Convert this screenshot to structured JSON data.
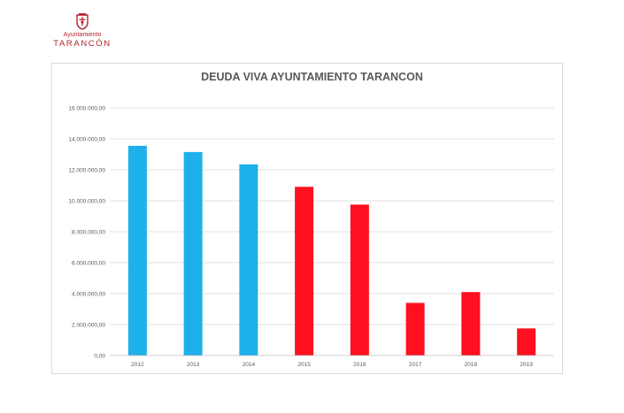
{
  "logo": {
    "line1": "Ayuntamiento",
    "line2": "TARANCÓN",
    "color": "#b5232b",
    "emblem_icon": "coat-of-arms-icon"
  },
  "chart_data": {
    "type": "bar",
    "title": "DEUDA VIVA AYUNTAMIENTO TARANCON",
    "xlabel": "",
    "ylabel": "",
    "categories": [
      "2012",
      "2013",
      "2014",
      "2015",
      "2016",
      "2017",
      "2018",
      "2019"
    ],
    "values": [
      13550000,
      13150000,
      12350000,
      10900000,
      9750000,
      3400000,
      4100000,
      1750000
    ],
    "bar_colors": [
      "#1eb0ea",
      "#1eb0ea",
      "#1eb0ea",
      "#ff0f1f",
      "#ff0f1f",
      "#ff0f1f",
      "#ff0f1f",
      "#ff0f1f"
    ],
    "ylim": [
      0,
      16000000
    ],
    "y_ticks": [
      0,
      2000000,
      4000000,
      6000000,
      8000000,
      10000000,
      12000000,
      14000000,
      16000000
    ],
    "y_tick_labels": [
      "0,00",
      "2.000.000,00",
      "4.000.000,00",
      "6.000.000,00",
      "8.000.000,00",
      "10.000.000,00",
      "12.000.000,00",
      "14.000.000,00",
      "16.000.000,00"
    ],
    "grid": true,
    "legend": "none"
  }
}
